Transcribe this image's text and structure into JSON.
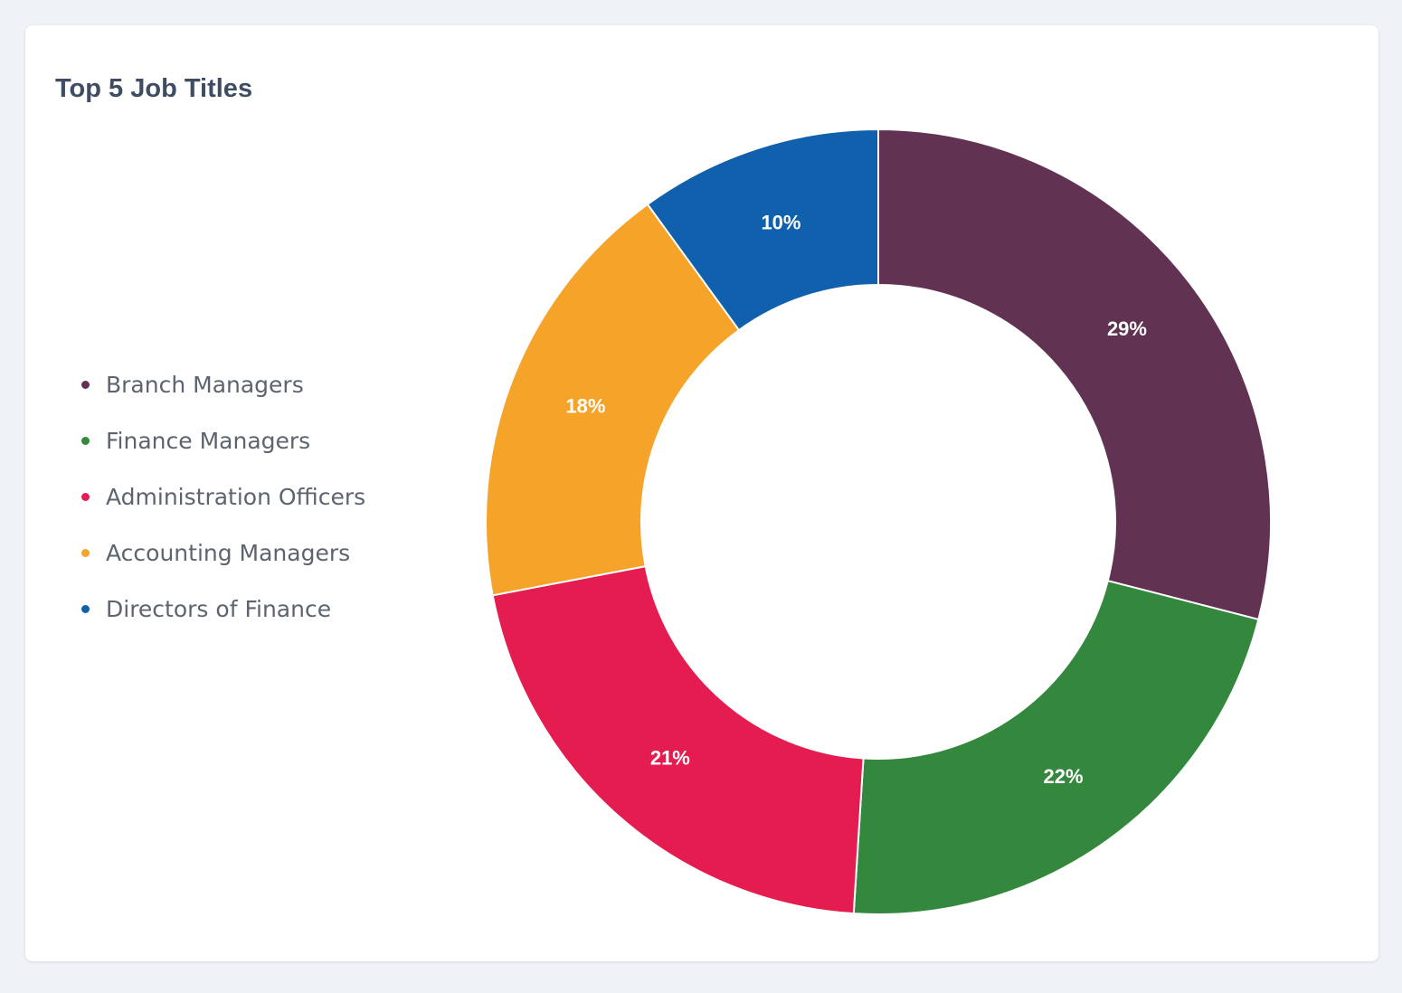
{
  "card": {
    "title": "Top 5 Job Titles"
  },
  "chart_data": {
    "type": "pie",
    "variant": "donut",
    "title": "Top 5 Job Titles",
    "legend_position": "left",
    "start_angle_deg": 0,
    "direction": "clockwise",
    "slices": [
      {
        "label": "Branch Managers",
        "value": 29,
        "display": "29%",
        "color": "#613252"
      },
      {
        "label": "Finance Managers",
        "value": 22,
        "display": "22%",
        "color": "#34883e"
      },
      {
        "label": "Administration Officers",
        "value": 21,
        "display": "21%",
        "color": "#e51c4f"
      },
      {
        "label": "Accounting Managers",
        "value": 18,
        "display": "18%",
        "color": "#f6a32a"
      },
      {
        "label": "Directors of Finance",
        "value": 10,
        "display": "10%",
        "color": "#1160ad"
      }
    ]
  }
}
